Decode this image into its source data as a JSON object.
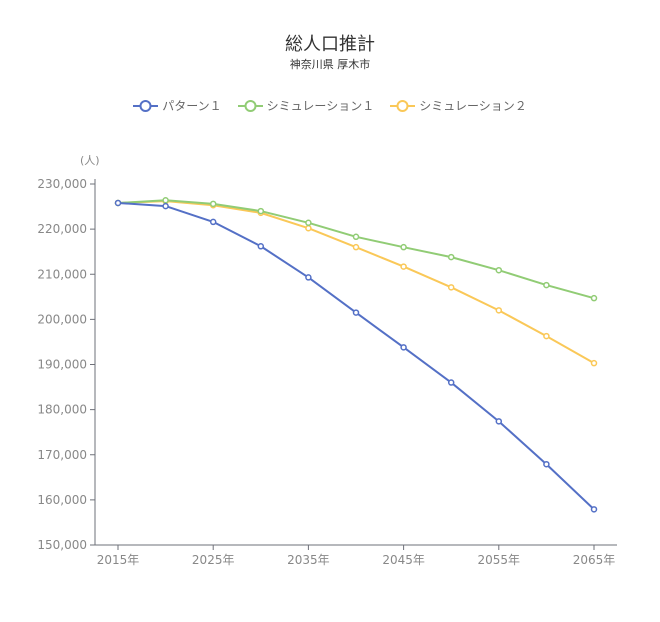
{
  "chart_data": {
    "type": "line",
    "title": "総人口推計",
    "subtitle": "神奈川県 厚木市",
    "ylabel": "(人)",
    "xlabel": "",
    "ylim": [
      150000,
      230000
    ],
    "yticks": [
      150000,
      160000,
      170000,
      180000,
      190000,
      200000,
      210000,
      220000,
      230000
    ],
    "ytick_labels": [
      "150,000",
      "160,000",
      "170,000",
      "180,000",
      "190,000",
      "200,000",
      "210,000",
      "220,000",
      "230,000"
    ],
    "x": [
      2015,
      2020,
      2025,
      2030,
      2035,
      2040,
      2045,
      2050,
      2055,
      2060,
      2065
    ],
    "xtick_labels": [
      "2015年",
      "2025年",
      "2035年",
      "2045年",
      "2055年",
      "2065年"
    ],
    "xtick_values": [
      2015,
      2025,
      2035,
      2045,
      2055,
      2065
    ],
    "grid": false,
    "legend_position": "top",
    "series": [
      {
        "name": "パターン１",
        "color": "#5470c6",
        "values": [
          225800,
          225100,
          221600,
          216200,
          209300,
          201500,
          193800,
          186000,
          177400,
          167900,
          157900
        ]
      },
      {
        "name": "シミュレーション１",
        "color": "#91cc75",
        "values": [
          225800,
          226400,
          225600,
          224000,
          221400,
          218300,
          216000,
          213800,
          210900,
          207600,
          204700
        ]
      },
      {
        "name": "シミュレーション２",
        "color": "#fac858",
        "values": [
          225800,
          226200,
          225300,
          223600,
          220200,
          216000,
          211700,
          207100,
          202000,
          196300,
          190300
        ]
      }
    ]
  },
  "legend": {
    "items": [
      {
        "label": "パターン１",
        "color": "#5470c6"
      },
      {
        "label": "シミュレーション１",
        "color": "#91cc75"
      },
      {
        "label": "シミュレーション２",
        "color": "#fac858"
      }
    ]
  },
  "colors": {
    "axis": "#6e7079",
    "tick_label": "#888888",
    "title": "#333333"
  }
}
